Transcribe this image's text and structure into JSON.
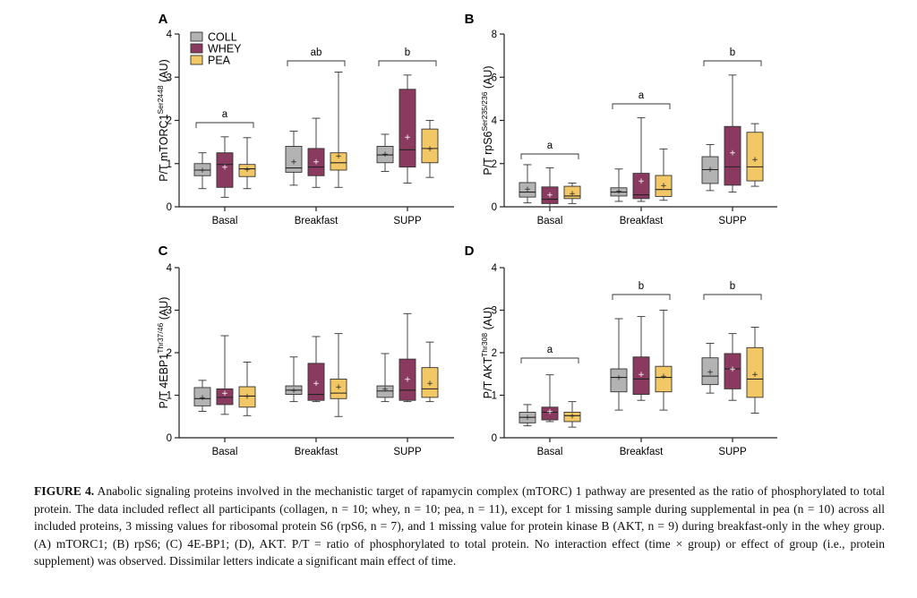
{
  "colors": {
    "COLL": "#b3b3b3",
    "WHEY": "#8b3a5f",
    "PEA": "#f2c766"
  },
  "legend": [
    {
      "name": "COLL",
      "color": "#b3b3b3"
    },
    {
      "name": "WHEY",
      "color": "#8b3a5f"
    },
    {
      "name": "PEA",
      "color": "#f2c766"
    }
  ],
  "caption": {
    "label": "FIGURE 4.",
    "text": "Anabolic signaling proteins involved in the mechanistic target of rapamycin complex (mTORC) 1 pathway are presented as the ratio of phosphorylated to total protein. The data included reflect all participants (collagen, n = 10; whey, n = 10; pea, n = 11), except for 1 missing sample during supplemental in pea (n = 10) across all included proteins, 3 missing values for ribosomal protein S6 (rpS6, n = 7), and 1 missing value for protein kinase B (AKT, n = 9) during breakfast-only in the whey group. (A) mTORC1; (B) rpS6; (C) 4E-BP1; (D), AKT. P/T = ratio of phosphorylated to total protein. No interaction effect (time × group) or effect of group (i.e., protein supplement) was observed. Dissimilar letters indicate a significant main effect of time."
  },
  "chart_data": [
    {
      "type": "box",
      "panel": "A",
      "ylabel": "P/T mTORC1",
      "ylabel_sup": "Ser2448",
      "ylabel_unit": "(AU)",
      "ylim": [
        0,
        4
      ],
      "yticks": [
        0,
        1,
        2,
        3,
        4
      ],
      "categories": [
        "Basal",
        "Breakfast",
        "SUPP"
      ],
      "letters": [
        "a",
        "ab",
        "b"
      ],
      "series": [
        {
          "name": "COLL",
          "boxes": [
            {
              "min": 0.42,
              "q1": 0.72,
              "median": 0.85,
              "q3": 1.0,
              "max": 1.25,
              "mean": 0.85
            },
            {
              "min": 0.5,
              "q1": 0.8,
              "median": 0.9,
              "q3": 1.4,
              "max": 1.75,
              "mean": 1.05
            },
            {
              "min": 0.82,
              "q1": 1.02,
              "median": 1.2,
              "q3": 1.4,
              "max": 1.68,
              "mean": 1.22
            }
          ]
        },
        {
          "name": "WHEY",
          "boxes": [
            {
              "min": 0.22,
              "q1": 0.45,
              "median": 0.98,
              "q3": 1.25,
              "max": 1.62,
              "mean": 0.92
            },
            {
              "min": 0.45,
              "q1": 0.72,
              "median": 0.92,
              "q3": 1.35,
              "max": 2.05,
              "mean": 1.05
            },
            {
              "min": 0.55,
              "q1": 0.92,
              "median": 1.32,
              "q3": 2.72,
              "max": 3.05,
              "mean": 1.62
            }
          ]
        },
        {
          "name": "PEA",
          "boxes": [
            {
              "min": 0.42,
              "q1": 0.7,
              "median": 0.88,
              "q3": 0.98,
              "max": 1.6,
              "mean": 0.87
            },
            {
              "min": 0.45,
              "q1": 0.85,
              "median": 1.02,
              "q3": 1.25,
              "max": 3.12,
              "mean": 1.18
            },
            {
              "min": 0.68,
              "q1": 1.02,
              "median": 1.35,
              "q3": 1.8,
              "max": 2.0,
              "mean": 1.35
            }
          ]
        }
      ]
    },
    {
      "type": "box",
      "panel": "B",
      "ylabel": "P/T rpS6",
      "ylabel_sup": "Ser235/236",
      "ylabel_unit": "(AU)",
      "ylim": [
        0,
        8
      ],
      "yticks": [
        0,
        2,
        4,
        6,
        8
      ],
      "categories": [
        "Basal",
        "Breakfast",
        "SUPP"
      ],
      "letters": [
        "a",
        "a",
        "b"
      ],
      "series": [
        {
          "name": "COLL",
          "boxes": [
            {
              "min": 0.18,
              "q1": 0.45,
              "median": 0.68,
              "q3": 1.12,
              "max": 1.95,
              "mean": 0.82
            },
            {
              "min": 0.25,
              "q1": 0.5,
              "median": 0.68,
              "q3": 0.88,
              "max": 1.75,
              "mean": 0.72
            },
            {
              "min": 0.75,
              "q1": 1.08,
              "median": 1.72,
              "q3": 2.32,
              "max": 2.88,
              "mean": 1.75
            }
          ]
        },
        {
          "name": "WHEY",
          "boxes": [
            {
              "min": 0.0,
              "q1": 0.15,
              "median": 0.35,
              "q3": 0.92,
              "max": 1.8,
              "mean": 0.55
            },
            {
              "min": 0.25,
              "q1": 0.38,
              "median": 0.55,
              "q3": 1.55,
              "max": 4.12,
              "mean": 1.2
            },
            {
              "min": 0.68,
              "q1": 1.0,
              "median": 1.85,
              "q3": 3.72,
              "max": 6.1,
              "mean": 2.5
            }
          ]
        },
        {
          "name": "PEA",
          "boxes": [
            {
              "min": 0.15,
              "q1": 0.38,
              "median": 0.5,
              "q3": 0.95,
              "max": 1.1,
              "mean": 0.62
            },
            {
              "min": 0.3,
              "q1": 0.48,
              "median": 0.8,
              "q3": 1.45,
              "max": 2.68,
              "mean": 1.0
            },
            {
              "min": 0.95,
              "q1": 1.2,
              "median": 1.85,
              "q3": 3.45,
              "max": 3.85,
              "mean": 2.2
            }
          ]
        }
      ]
    },
    {
      "type": "box",
      "panel": "C",
      "ylabel": "P/T 4EBP1",
      "ylabel_sup": "Thr37/46",
      "ylabel_unit": "(AU)",
      "ylim": [
        0,
        4
      ],
      "yticks": [
        0,
        1,
        2,
        3,
        4
      ],
      "categories": [
        "Basal",
        "Breakfast",
        "SUPP"
      ],
      "letters": [
        "",
        "",
        ""
      ],
      "series": [
        {
          "name": "COLL",
          "boxes": [
            {
              "min": 0.62,
              "q1": 0.75,
              "median": 0.92,
              "q3": 1.18,
              "max": 1.35,
              "mean": 0.95
            },
            {
              "min": 0.85,
              "q1": 1.02,
              "median": 1.12,
              "q3": 1.22,
              "max": 1.9,
              "mean": 1.12
            },
            {
              "min": 0.85,
              "q1": 0.95,
              "median": 1.1,
              "q3": 1.22,
              "max": 1.98,
              "mean": 1.15
            }
          ]
        },
        {
          "name": "WHEY",
          "boxes": [
            {
              "min": 0.55,
              "q1": 0.78,
              "median": 0.95,
              "q3": 1.15,
              "max": 2.4,
              "mean": 1.05
            },
            {
              "min": 0.85,
              "q1": 0.88,
              "median": 1.02,
              "q3": 1.75,
              "max": 2.38,
              "mean": 1.28
            },
            {
              "min": 0.85,
              "q1": 0.88,
              "median": 1.12,
              "q3": 1.85,
              "max": 2.92,
              "mean": 1.38
            }
          ]
        },
        {
          "name": "PEA",
          "boxes": [
            {
              "min": 0.52,
              "q1": 0.72,
              "median": 0.98,
              "q3": 1.2,
              "max": 1.78,
              "mean": 0.98
            },
            {
              "min": 0.5,
              "q1": 0.92,
              "median": 1.05,
              "q3": 1.38,
              "max": 2.45,
              "mean": 1.2
            },
            {
              "min": 0.85,
              "q1": 0.95,
              "median": 1.15,
              "q3": 1.65,
              "max": 2.25,
              "mean": 1.28
            }
          ]
        }
      ]
    },
    {
      "type": "box",
      "panel": "D",
      "ylabel": "P/T AKT",
      "ylabel_sup": "Thr308",
      "ylabel_unit": "(AU)",
      "ylim": [
        0,
        4
      ],
      "yticks": [
        0,
        1,
        2,
        3,
        4
      ],
      "categories": [
        "Basal",
        "Breakfast",
        "SUPP"
      ],
      "letters": [
        "a",
        "b",
        "b"
      ],
      "series": [
        {
          "name": "COLL",
          "boxes": [
            {
              "min": 0.28,
              "q1": 0.35,
              "median": 0.48,
              "q3": 0.6,
              "max": 0.78,
              "mean": 0.48
            },
            {
              "min": 0.65,
              "q1": 1.08,
              "median": 1.42,
              "q3": 1.62,
              "max": 2.8,
              "mean": 1.42
            },
            {
              "min": 1.05,
              "q1": 1.25,
              "median": 1.45,
              "q3": 1.88,
              "max": 2.22,
              "mean": 1.55
            }
          ]
        },
        {
          "name": "WHEY",
          "boxes": [
            {
              "min": 0.38,
              "q1": 0.42,
              "median": 0.6,
              "q3": 0.72,
              "max": 1.48,
              "mean": 0.62
            },
            {
              "min": 0.88,
              "q1": 1.02,
              "median": 1.38,
              "q3": 1.9,
              "max": 2.85,
              "mean": 1.5
            },
            {
              "min": 0.88,
              "q1": 1.15,
              "median": 1.62,
              "q3": 1.98,
              "max": 2.45,
              "mean": 1.62
            }
          ]
        },
        {
          "name": "PEA",
          "boxes": [
            {
              "min": 0.25,
              "q1": 0.38,
              "median": 0.52,
              "q3": 0.6,
              "max": 0.85,
              "mean": 0.52
            },
            {
              "min": 0.65,
              "q1": 1.08,
              "median": 1.42,
              "q3": 1.68,
              "max": 3.0,
              "mean": 1.45
            },
            {
              "min": 0.58,
              "q1": 0.95,
              "median": 1.38,
              "q3": 2.12,
              "max": 2.6,
              "mean": 1.5
            }
          ]
        }
      ]
    }
  ]
}
